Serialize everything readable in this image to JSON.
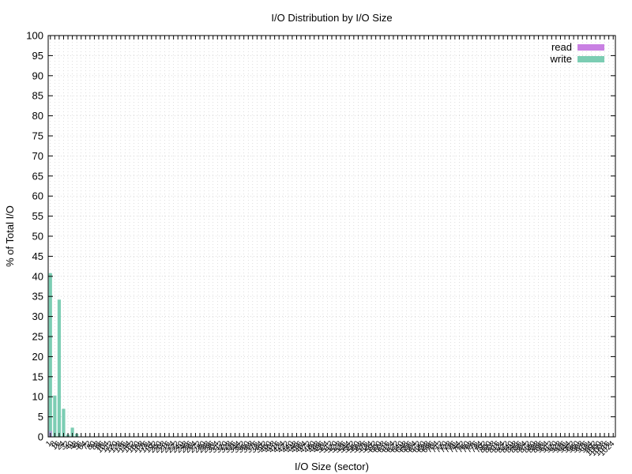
{
  "chart_data": {
    "type": "bar",
    "title": "I/O Distribution by I/O Size",
    "xlabel": "I/O Size (sector)",
    "ylabel": "% of Total I/O",
    "ylim": [
      0,
      100
    ],
    "yticks": [
      0,
      5,
      10,
      15,
      20,
      25,
      30,
      35,
      40,
      45,
      50,
      55,
      60,
      65,
      70,
      75,
      80,
      85,
      90,
      95,
      100
    ],
    "grid": true,
    "legend_position": "top-right",
    "categories": [
      "1",
      "8",
      "16",
      "24",
      "32",
      "40",
      "48",
      "56",
      "64",
      "72",
      "80",
      "88",
      "96",
      "104",
      "112",
      "120",
      "128",
      "136",
      "144",
      "152",
      "160",
      "168",
      "176",
      "184",
      "192",
      "200",
      "208",
      "216",
      "224",
      "232",
      "240",
      "248",
      "256",
      "264",
      "272",
      "280",
      "288",
      "296",
      "304",
      "312",
      "320",
      "328",
      "336",
      "344",
      "352",
      "360",
      "368",
      "376",
      "384",
      "392",
      "400",
      "408",
      "416",
      "424",
      "432",
      "440",
      "448",
      "456",
      "464",
      "472",
      "480",
      "488",
      "496",
      "504",
      "512",
      "520",
      "528",
      "536",
      "544",
      "552",
      "560",
      "568",
      "576",
      "584",
      "592",
      "600",
      "608",
      "616",
      "624",
      "632",
      "640",
      "648",
      "656",
      "664",
      "672",
      "680",
      "688",
      "696",
      "704",
      "712",
      "720",
      "728",
      "736",
      "744",
      "752",
      "760",
      "768",
      "776",
      "784",
      "792",
      "800",
      "808",
      "816",
      "824",
      "832",
      "840",
      "848",
      "856",
      "864",
      "872",
      "880",
      "888",
      "896",
      "904",
      "912",
      "920",
      "928",
      "936",
      "944",
      "952",
      "960",
      "968",
      "976",
      "984",
      "992",
      "1000",
      "1008",
      "1016",
      "1024"
    ],
    "series": [
      {
        "name": "read",
        "color": "#c980e3",
        "values": [
          1.5,
          0,
          0,
          0,
          0,
          0,
          0,
          0,
          0,
          0,
          0,
          0,
          0,
          0,
          0,
          0,
          0,
          0,
          0,
          0,
          0,
          0,
          0,
          0,
          0,
          0,
          0,
          0,
          0,
          0,
          0,
          0,
          0,
          0,
          0,
          0,
          0,
          0,
          0,
          0,
          0,
          0,
          0,
          0,
          0,
          0,
          0,
          0,
          0,
          0,
          0,
          0,
          0,
          0,
          0,
          0,
          0,
          0,
          0,
          0,
          0,
          0,
          0,
          0,
          0,
          0,
          0,
          0,
          0,
          0,
          0,
          0,
          0,
          0,
          0,
          0,
          0,
          0,
          0,
          0,
          0,
          0,
          0,
          0,
          0,
          0,
          0,
          0,
          0,
          0,
          0,
          0,
          0,
          0,
          0,
          0,
          0,
          0,
          0,
          0,
          0,
          0,
          0,
          0,
          0,
          0,
          0,
          0,
          0,
          0,
          0,
          0,
          0,
          0,
          0,
          0,
          0,
          0,
          0,
          0,
          0,
          0,
          0,
          0,
          0,
          0,
          0,
          0,
          0
        ]
      },
      {
        "name": "write",
        "color": "#7ccdb3",
        "values": [
          40.8,
          10.3,
          34.2,
          7.0,
          0.6,
          2.3,
          0.8,
          0,
          0,
          0,
          0,
          0,
          0,
          0,
          0,
          0,
          0,
          0,
          0,
          0,
          0,
          0,
          0,
          0,
          0,
          0,
          0,
          0,
          0,
          0,
          0,
          0,
          0,
          0,
          0,
          0,
          0,
          0,
          0,
          0,
          0,
          0,
          0,
          0,
          0,
          0,
          0,
          0,
          0,
          0,
          0,
          0,
          0,
          0,
          0,
          0,
          0,
          0,
          0,
          0,
          0,
          0,
          0,
          0,
          0,
          0,
          0,
          0,
          0,
          0,
          0,
          0,
          0,
          0,
          0,
          0,
          0,
          0,
          0,
          0,
          0,
          0,
          0,
          0,
          0,
          0,
          0,
          0,
          0,
          0,
          0,
          0,
          0,
          0,
          0,
          0,
          0,
          0,
          0,
          0,
          0,
          0,
          0,
          0,
          0,
          0,
          0,
          0,
          0,
          0,
          0,
          0,
          0,
          0,
          0,
          0,
          0,
          0,
          0,
          0,
          0,
          0,
          0,
          0,
          0,
          0,
          0,
          0,
          0
        ]
      }
    ]
  }
}
